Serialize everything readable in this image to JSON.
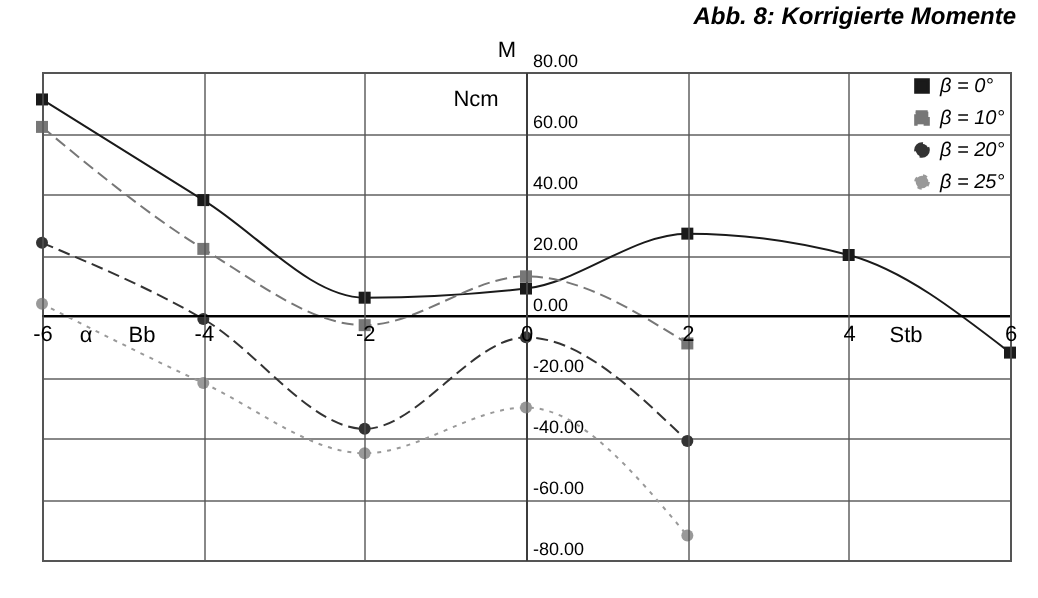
{
  "chart_data": {
    "type": "line",
    "title": "Abb. 8: Korrigierte Momente",
    "ylabel": "M",
    "x": [
      -6,
      -4,
      -2,
      0,
      2,
      4,
      6
    ],
    "series": [
      {
        "name": "β = 0°",
        "color": "#1a1a1a",
        "marker": "square",
        "line_style": "solid",
        "values": [
          71,
          38,
          6,
          9,
          27,
          20,
          -12
        ]
      },
      {
        "name": "β = 10°",
        "color": "#777777",
        "marker": "square",
        "line_style": "dashed",
        "values": [
          62,
          22,
          -3,
          13,
          -9,
          null,
          null
        ]
      },
      {
        "name": "β = 20°",
        "color": "#333333",
        "marker": "circle",
        "line_style": "dashed",
        "values": [
          24,
          -1,
          -37,
          -7,
          -41,
          null,
          null
        ]
      },
      {
        "name": "β = 25°",
        "color": "#999999",
        "marker": "circle",
        "line_style": "dotted",
        "values": [
          4,
          -22,
          -45,
          -30,
          -72,
          null,
          null
        ]
      }
    ],
    "xlim": [
      -6,
      6
    ],
    "xticks": [
      -6,
      -4,
      -2,
      0,
      2,
      4,
      6
    ],
    "ylim": [
      -80,
      80
    ],
    "yticks": [
      {
        "value": -80,
        "label": "-80.00"
      },
      {
        "value": -60,
        "label": "-60.00"
      },
      {
        "value": -40,
        "label": "-40.00"
      },
      {
        "value": -20,
        "label": "-20.00"
      },
      {
        "value": 0,
        "label": "0.00"
      },
      {
        "value": 20,
        "label": "20.00"
      },
      {
        "value": 40,
        "label": "40.00"
      },
      {
        "value": 60,
        "label": "60.00"
      },
      {
        "value": 80,
        "label": "80.00"
      }
    ],
    "grid": true,
    "legend": "top right",
    "annotations": [
      "Ncm",
      "α",
      "Bb",
      "Stb"
    ]
  }
}
